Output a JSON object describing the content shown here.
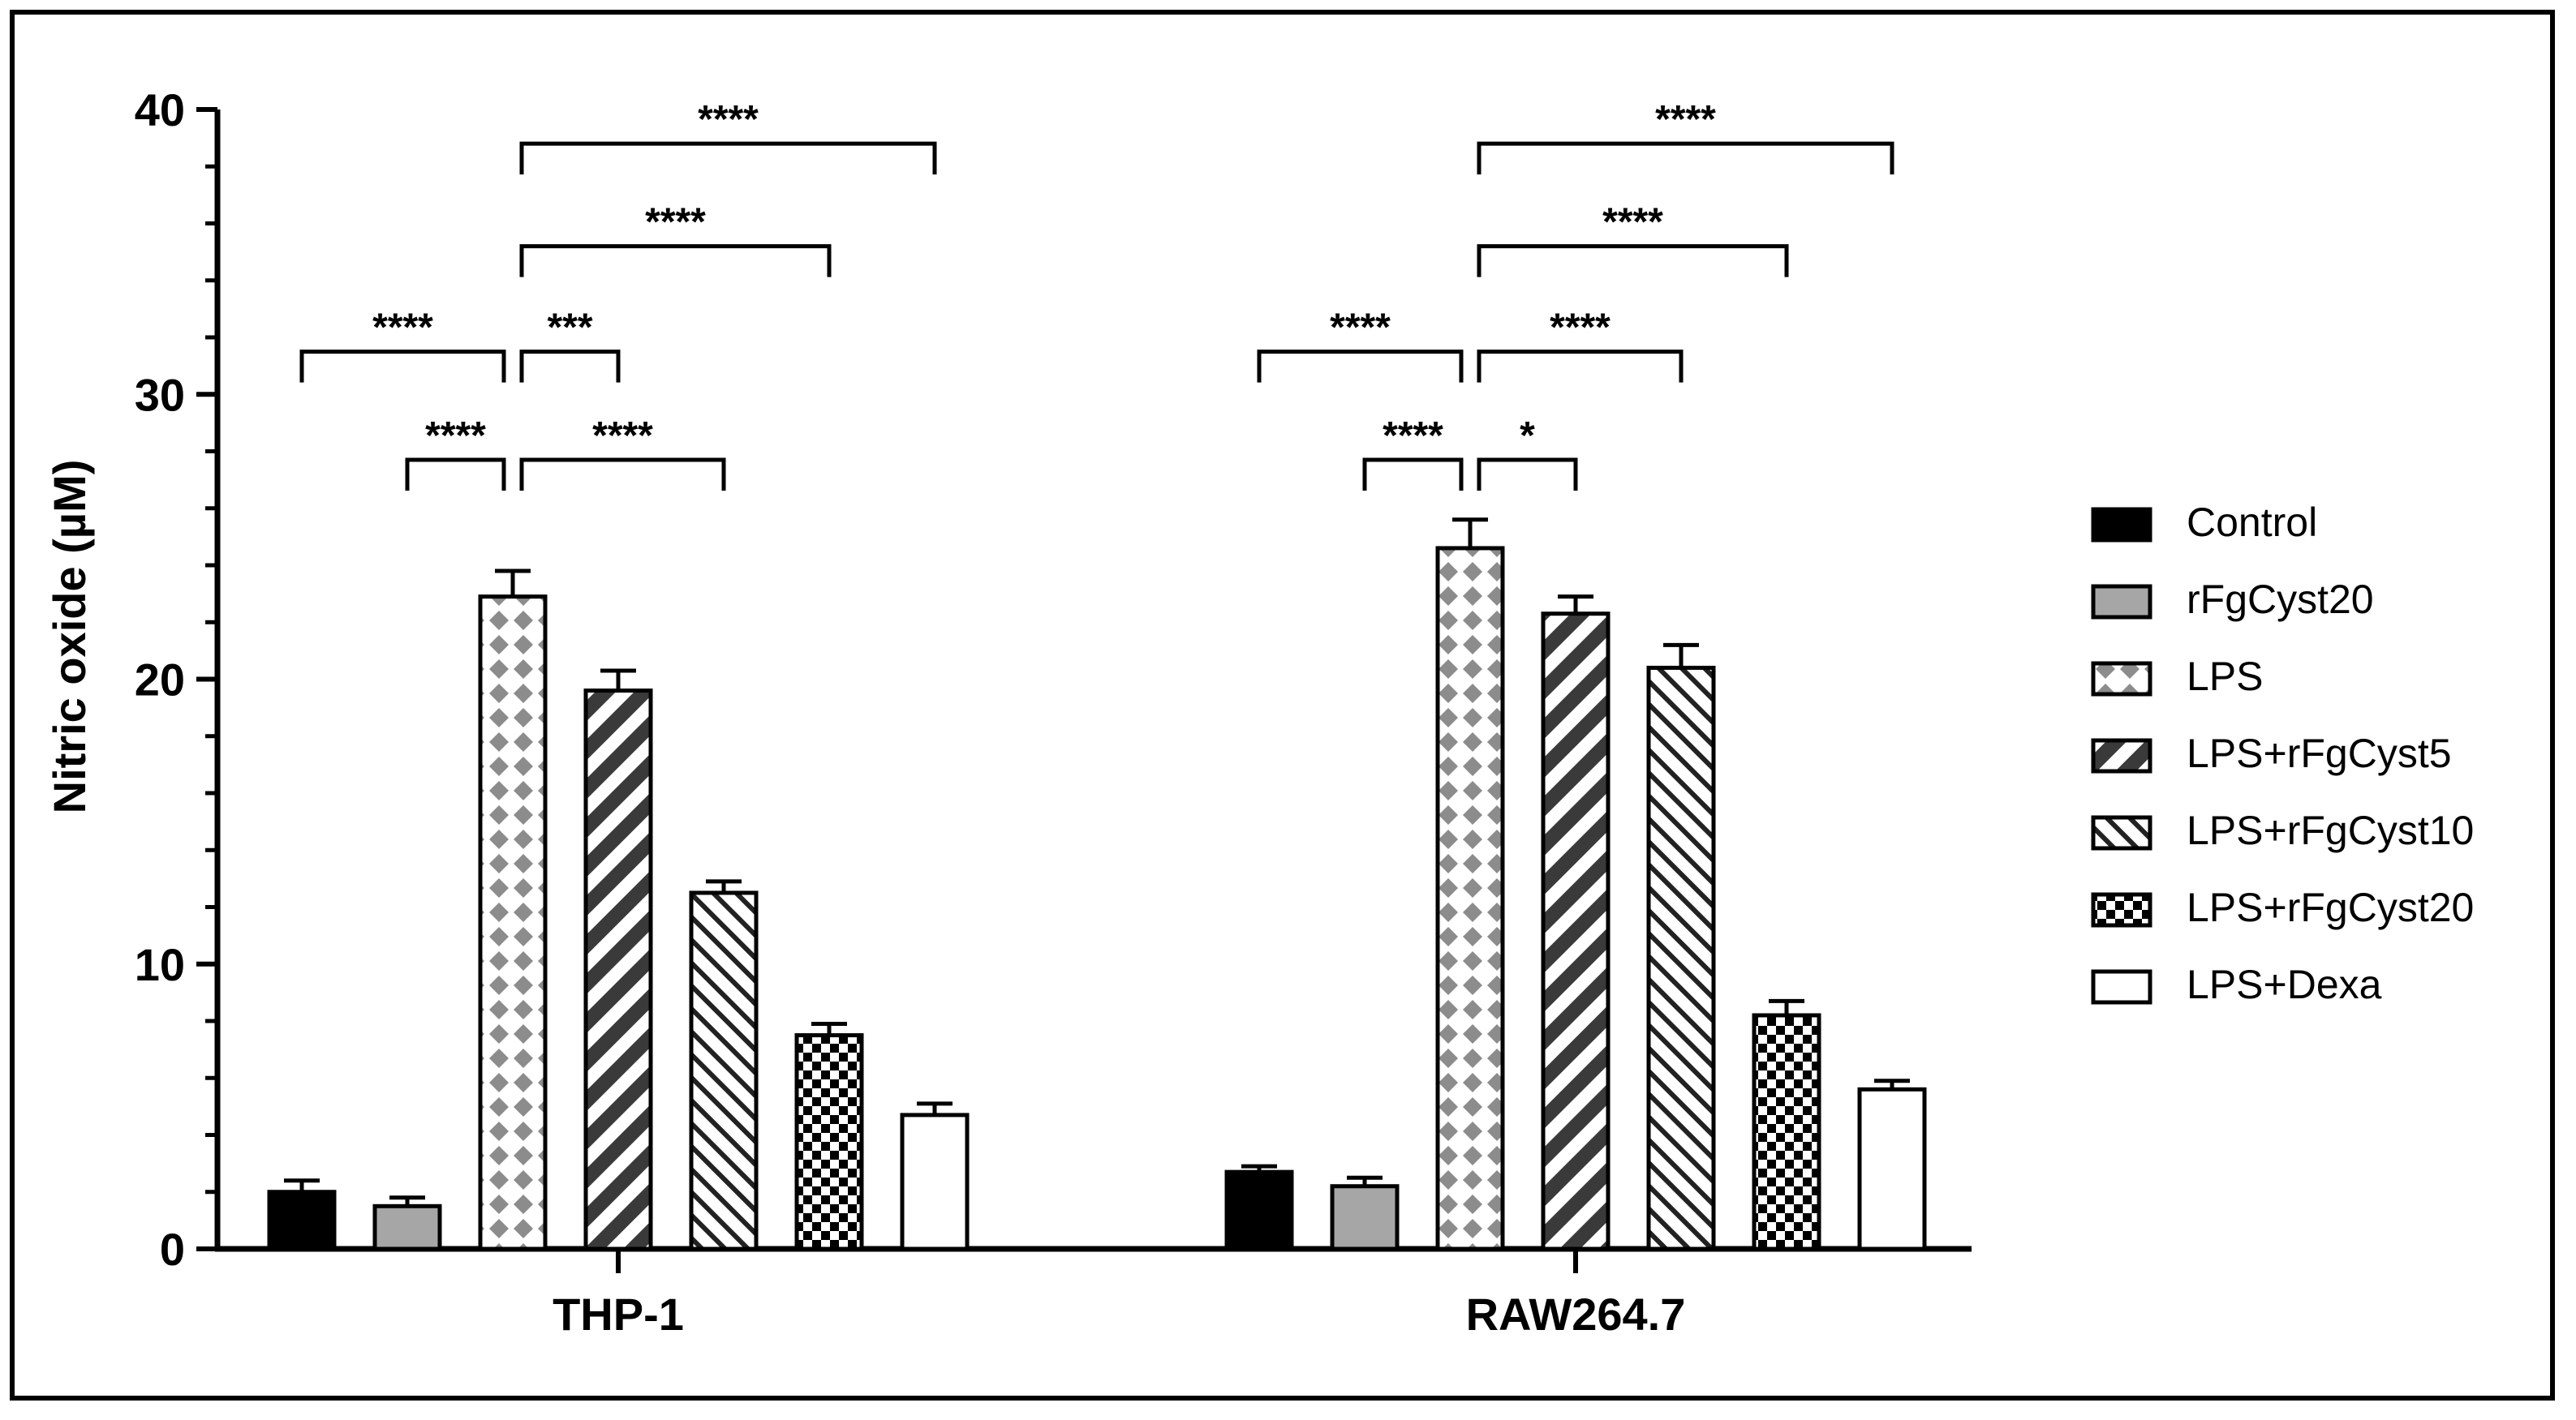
{
  "chart_data": {
    "type": "bar",
    "title": "",
    "xlabel": "",
    "ylabel": "Nitric oxide (µM)",
    "ylim": [
      0,
      40
    ],
    "yticks": [
      "0",
      "10",
      "20",
      "30",
      "40"
    ],
    "categories": [
      "THP-1",
      "RAW264.7"
    ],
    "series": [
      {
        "name": "Control",
        "pattern": "solid-black",
        "values": [
          2.0,
          2.7
        ],
        "errors": [
          0.4,
          0.2
        ]
      },
      {
        "name": "rFgCyst20",
        "pattern": "solid-gray",
        "values": [
          1.5,
          2.2
        ],
        "errors": [
          0.3,
          0.3
        ]
      },
      {
        "name": "LPS",
        "pattern": "diamonds",
        "values": [
          22.9,
          24.6
        ],
        "errors": [
          0.9,
          1.0
        ]
      },
      {
        "name": "LPS+rFgCyst5",
        "pattern": "thick-hatch",
        "values": [
          19.6,
          22.3
        ],
        "errors": [
          0.7,
          0.6
        ]
      },
      {
        "name": "LPS+rFgCyst10",
        "pattern": "thin-hatch",
        "values": [
          12.5,
          20.4
        ],
        "errors": [
          0.4,
          0.8
        ]
      },
      {
        "name": "LPS+rFgCyst20",
        "pattern": "checker",
        "values": [
          7.5,
          8.2
        ],
        "errors": [
          0.4,
          0.5
        ]
      },
      {
        "name": "LPS+Dexa",
        "pattern": "white",
        "values": [
          4.7,
          5.6
        ],
        "errors": [
          0.4,
          0.3
        ]
      }
    ],
    "annotations": [
      {
        "group": 0,
        "from": 0,
        "to": 2,
        "y": 31.5,
        "label": "****"
      },
      {
        "group": 0,
        "from": 1,
        "to": 2,
        "y": 27.7,
        "label": "****"
      },
      {
        "group": 0,
        "from": 2,
        "to": 3,
        "y": 31.5,
        "label": "***"
      },
      {
        "group": 0,
        "from": 2,
        "to": 4,
        "y": 27.7,
        "label": "****"
      },
      {
        "group": 0,
        "from": 2,
        "to": 5,
        "y": 35.2,
        "label": "****"
      },
      {
        "group": 0,
        "from": 2,
        "to": 6,
        "y": 38.8,
        "label": "****"
      },
      {
        "group": 1,
        "from": 0,
        "to": 2,
        "y": 31.5,
        "label": "****"
      },
      {
        "group": 1,
        "from": 1,
        "to": 2,
        "y": 27.7,
        "label": "****"
      },
      {
        "group": 1,
        "from": 2,
        "to": 3,
        "y": 27.7,
        "label": "*"
      },
      {
        "group": 1,
        "from": 2,
        "to": 4,
        "y": 31.5,
        "label": "****"
      },
      {
        "group": 1,
        "from": 2,
        "to": 5,
        "y": 35.2,
        "label": "****"
      },
      {
        "group": 1,
        "from": 2,
        "to": 6,
        "y": 38.8,
        "label": "****"
      }
    ],
    "legend": {
      "position": "right"
    }
  },
  "colors": {
    "black": "#000000",
    "gray": "#a6a6a6",
    "diamond": "#8c8c8c",
    "white": "#ffffff"
  }
}
